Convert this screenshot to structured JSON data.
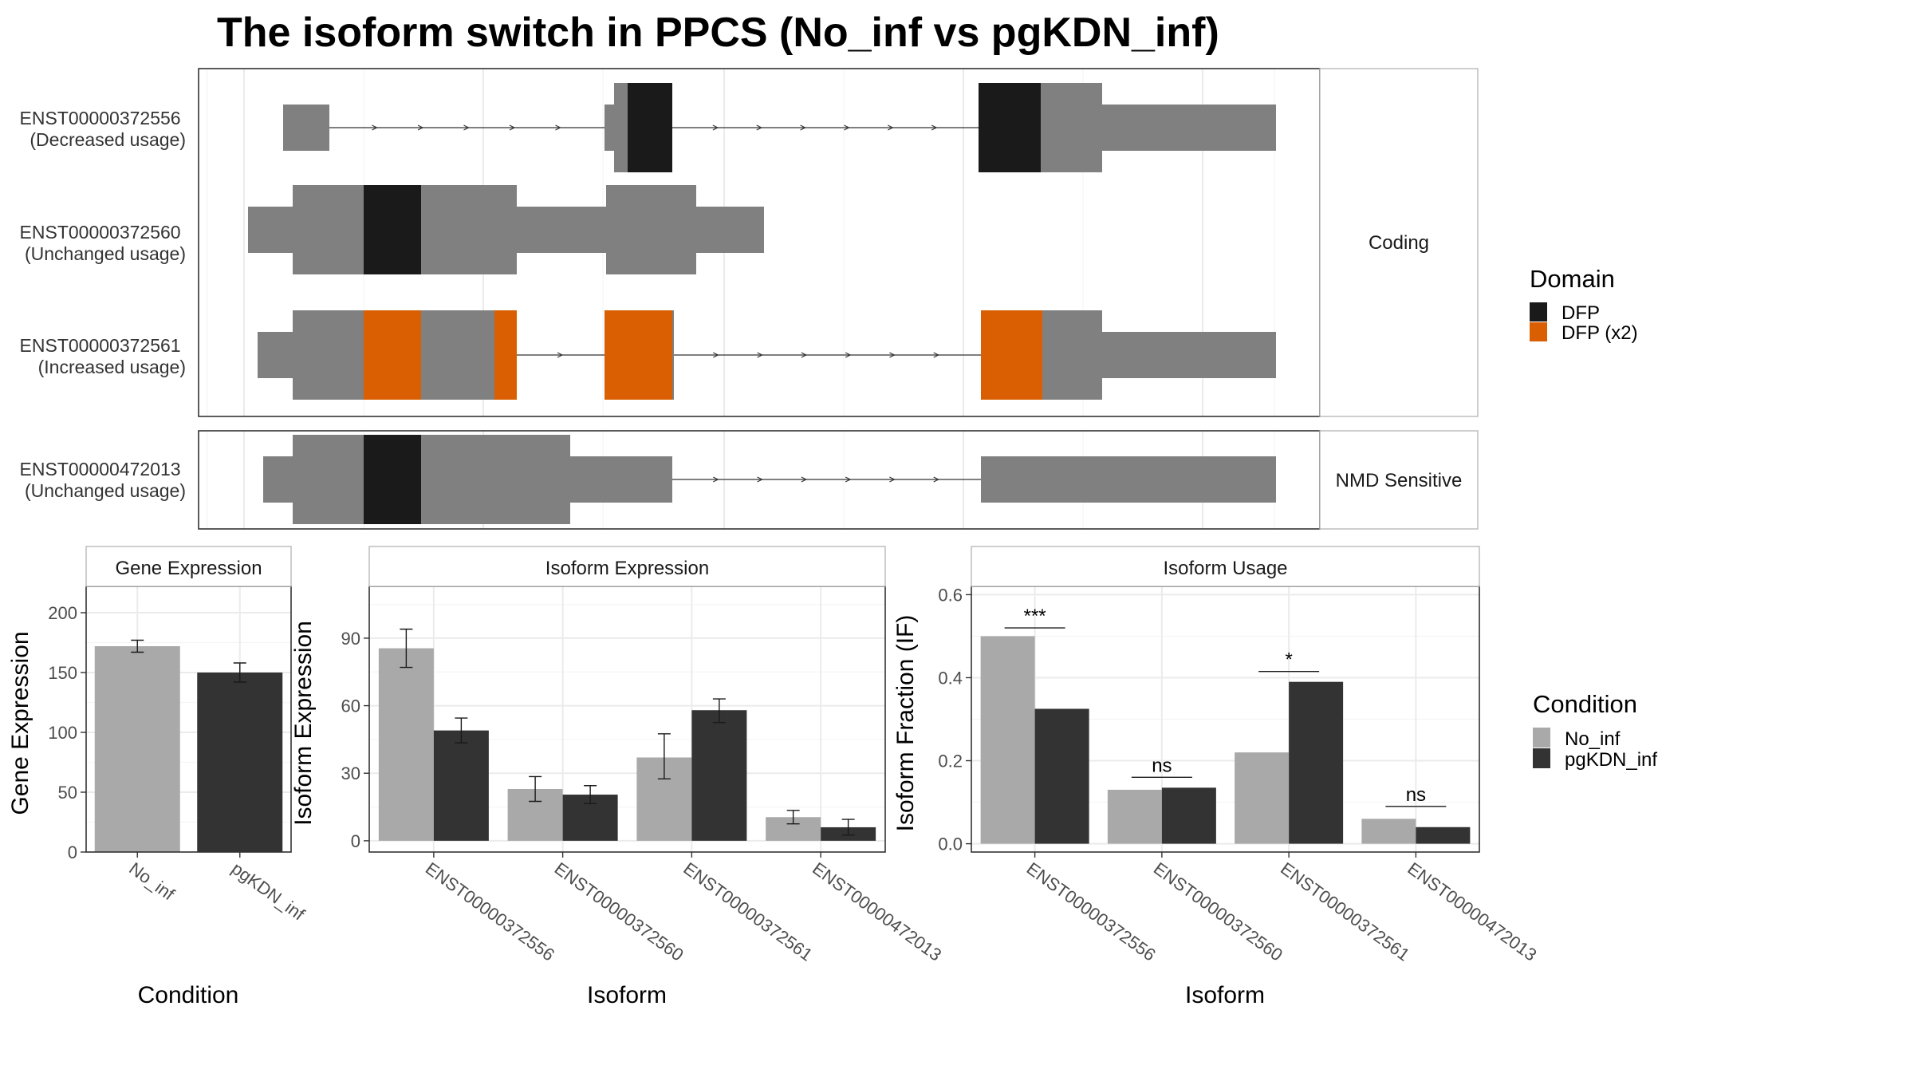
{
  "title": "The isoform switch in PPCS (No_inf vs pgKDN_inf)",
  "colors": {
    "no_inf": "#a9a9a9",
    "pgkdn_inf": "#333333",
    "exon": "#808080",
    "dfp": "#1a1a1a",
    "dfp_x2": "#d95f02",
    "intron": "#333333"
  },
  "structure": {
    "facets": [
      {
        "label": "Coding",
        "isoforms": [
          {
            "id": "ENST00000372556",
            "usage": "(Decreased usage)"
          },
          {
            "id": "ENST00000372560",
            "usage": "(Unchanged usage)"
          },
          {
            "id": "ENST00000372561",
            "usage": "(Increased usage)"
          }
        ]
      },
      {
        "label": "NMD Sensitive",
        "isoforms": [
          {
            "id": "ENST00000472013",
            "usage": "(Unchanged usage)"
          }
        ]
      }
    ]
  },
  "legends": {
    "domain": {
      "title": "Domain",
      "items": [
        "DFP",
        "DFP (x2)"
      ]
    },
    "condition": {
      "title": "Condition",
      "items": [
        "No_inf",
        "pgKDN_inf"
      ]
    }
  },
  "chart_data": [
    {
      "type": "bar",
      "panel": "Gene Expression",
      "categories": [
        "No_inf",
        "pgKDN_inf"
      ],
      "values": [
        172,
        150
      ],
      "error_low": [
        167,
        142
      ],
      "error_high": [
        177,
        158
      ],
      "xlabel": "Condition",
      "ylabel": "Gene Expression",
      "ylim": [
        0,
        222
      ],
      "yticks": [
        0,
        50,
        100,
        150,
        200
      ]
    },
    {
      "type": "bar",
      "panel": "Isoform Expression",
      "categories": [
        "ENST00000372556",
        "ENST00000372560",
        "ENST00000372561",
        "ENST00000472013"
      ],
      "series": [
        {
          "name": "No_inf",
          "values": [
            85.5,
            23,
            37,
            10.5
          ],
          "error_low": [
            77,
            17.5,
            27.5,
            7.5
          ],
          "error_high": [
            94,
            28.5,
            47.5,
            13.5
          ]
        },
        {
          "name": "pgKDN_inf",
          "values": [
            49,
            20.5,
            58,
            6
          ],
          "error_low": [
            43.5,
            16.5,
            52.5,
            2.5
          ],
          "error_high": [
            54.5,
            24.5,
            63,
            9.5
          ]
        }
      ],
      "xlabel": "Isoform",
      "ylabel": "Isoform Expression",
      "ylim": [
        -5,
        113
      ],
      "yticks": [
        0,
        30,
        60,
        90
      ]
    },
    {
      "type": "bar",
      "panel": "Isoform Usage",
      "categories": [
        "ENST00000372556",
        "ENST00000372560",
        "ENST00000372561",
        "ENST00000472013"
      ],
      "series": [
        {
          "name": "No_inf",
          "values": [
            0.5,
            0.13,
            0.22,
            0.06
          ]
        },
        {
          "name": "pgKDN_inf",
          "values": [
            0.325,
            0.135,
            0.39,
            0.04
          ]
        }
      ],
      "significance": [
        "***",
        "ns",
        "*",
        "ns"
      ],
      "significance_y": [
        0.52,
        0.16,
        0.415,
        0.09
      ],
      "xlabel": "Isoform",
      "ylabel": "Isoform Fraction (IF)",
      "ylim": [
        -0.02,
        0.62
      ],
      "yticks": [
        0.0,
        0.2,
        0.4,
        0.6
      ],
      "ytick_labels": [
        "0.0",
        "0.2",
        "0.4",
        "0.6"
      ]
    }
  ]
}
